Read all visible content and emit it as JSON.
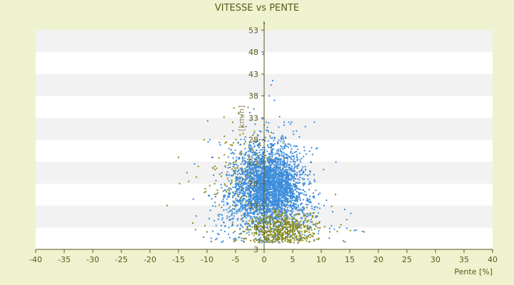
{
  "chart_data": {
    "type": "scatter",
    "title": "VITESSE vs PENTE",
    "xlabel": "Pente [%]",
    "ylabel": "[km/h]",
    "xlim": [
      -40,
      40
    ],
    "ylim": [
      3,
      55
    ],
    "x_ticks": [
      -40,
      -35,
      -30,
      -25,
      -20,
      -15,
      -10,
      -5,
      0,
      5,
      10,
      15,
      20,
      25,
      30,
      35,
      40
    ],
    "y_ticks": [
      3,
      8,
      13,
      18,
      23,
      28,
      33,
      38,
      43,
      48,
      53
    ],
    "grid": "horizontal-bands",
    "legend": "none",
    "colors": {
      "background": "#eef2cf",
      "band_light": "#ffffff",
      "band_dark": "#f2f2f2",
      "axis": "#5a5a1e",
      "series_1": "#3c8ddc",
      "series_2": "#8c8c1e"
    },
    "series": [
      {
        "color": "#3c8ddc",
        "cluster": {
          "x_mean": 0.8,
          "x_sd": 3.0,
          "y_mean": 17,
          "y_sd": 5.0,
          "count": 3200
        },
        "outliers": [
          [
            0,
            54.5
          ],
          [
            -0.2,
            47.5
          ],
          [
            1.5,
            41.5
          ],
          [
            1.2,
            40.5
          ],
          [
            0.9,
            38
          ],
          [
            1.8,
            37
          ],
          [
            -1.8,
            35
          ],
          [
            -2.5,
            34.2
          ],
          [
            3.5,
            32
          ],
          [
            8.8,
            32
          ],
          [
            7.2,
            31
          ],
          [
            -3.2,
            31
          ],
          [
            -9.5,
            28
          ],
          [
            -9.8,
            27.5
          ],
          [
            13.2,
            8
          ],
          [
            14.5,
            7.8
          ],
          [
            15.8,
            7.3
          ],
          [
            17.2,
            7.1
          ],
          [
            16.1,
            7.4
          ],
          [
            12.3,
            7.6
          ],
          [
            11.8,
            8.4
          ],
          [
            -11.9,
            10.6
          ],
          [
            -10.6,
            5.8
          ],
          [
            -13.5,
            20.5
          ],
          [
            -12.2,
            22.5
          ],
          [
            -9,
            24
          ],
          [
            10.5,
            13
          ],
          [
            9.5,
            15.5
          ]
        ]
      },
      {
        "color": "#8c8c1e",
        "cluster_a": {
          "x_mean": -2.5,
          "x_sd": 3.8,
          "y_mean": 20,
          "y_sd": 5.5,
          "count": 230
        },
        "cluster_b": {
          "x_mean": 3.0,
          "x_sd": 3.2,
          "y_mean": 7.5,
          "y_sd": 2.0,
          "count": 550
        },
        "outliers": [
          [
            -17,
            13
          ],
          [
            -15,
            24
          ],
          [
            -14.8,
            18
          ],
          [
            -13.2,
            18.5
          ],
          [
            -12.5,
            9
          ],
          [
            -12,
            7.5
          ],
          [
            -10.5,
            28
          ],
          [
            -10,
            7
          ],
          [
            -5.5,
            32
          ],
          [
            -4.5,
            34
          ],
          [
            -3.9,
            33.5
          ],
          [
            -2,
            29
          ],
          [
            12.5,
            15.5
          ],
          [
            11.8,
            12.8
          ],
          [
            11.5,
            7
          ],
          [
            12.8,
            7.1
          ],
          [
            15.1,
            7.3
          ],
          [
            17.5,
            7.0
          ]
        ]
      }
    ]
  }
}
